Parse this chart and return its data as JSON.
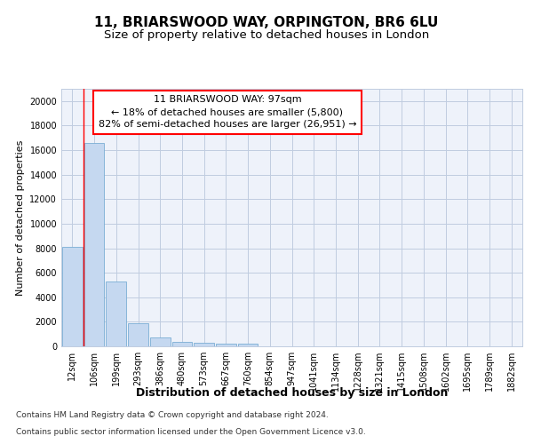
{
  "title1": "11, BRIARSWOOD WAY, ORPINGTON, BR6 6LU",
  "title2": "Size of property relative to detached houses in London",
  "xlabel": "Distribution of detached houses by size in London",
  "ylabel": "Number of detached properties",
  "categories": [
    "12sqm",
    "106sqm",
    "199sqm",
    "293sqm",
    "386sqm",
    "480sqm",
    "573sqm",
    "667sqm",
    "760sqm",
    "854sqm",
    "947sqm",
    "1041sqm",
    "1134sqm",
    "1228sqm",
    "1321sqm",
    "1415sqm",
    "1508sqm",
    "1602sqm",
    "1695sqm",
    "1789sqm",
    "1882sqm"
  ],
  "bar_heights": [
    8100,
    16600,
    5300,
    1850,
    700,
    360,
    270,
    220,
    185,
    0,
    0,
    0,
    0,
    0,
    0,
    0,
    0,
    0,
    0,
    0,
    0
  ],
  "bar_color": "#c5d8f0",
  "bar_edge_color": "#7aaed4",
  "ylim": [
    0,
    21000
  ],
  "yticks": [
    0,
    2000,
    4000,
    6000,
    8000,
    10000,
    12000,
    14000,
    16000,
    18000,
    20000
  ],
  "annotation_line1": "11 BRIARSWOOD WAY: 97sqm",
  "annotation_line2": "← 18% of detached houses are smaller (5,800)",
  "annotation_line3": "82% of semi-detached houses are larger (26,951) →",
  "property_line_x": 0.5,
  "footer1": "Contains HM Land Registry data © Crown copyright and database right 2024.",
  "footer2": "Contains public sector information licensed under the Open Government Licence v3.0.",
  "bg_color": "#eef2fa",
  "grid_color": "#c0cce0",
  "title_fontsize": 11,
  "subtitle_fontsize": 9.5,
  "xlabel_fontsize": 9,
  "ylabel_fontsize": 8,
  "tick_fontsize": 7,
  "annotation_fontsize": 8,
  "footer_fontsize": 6.5
}
